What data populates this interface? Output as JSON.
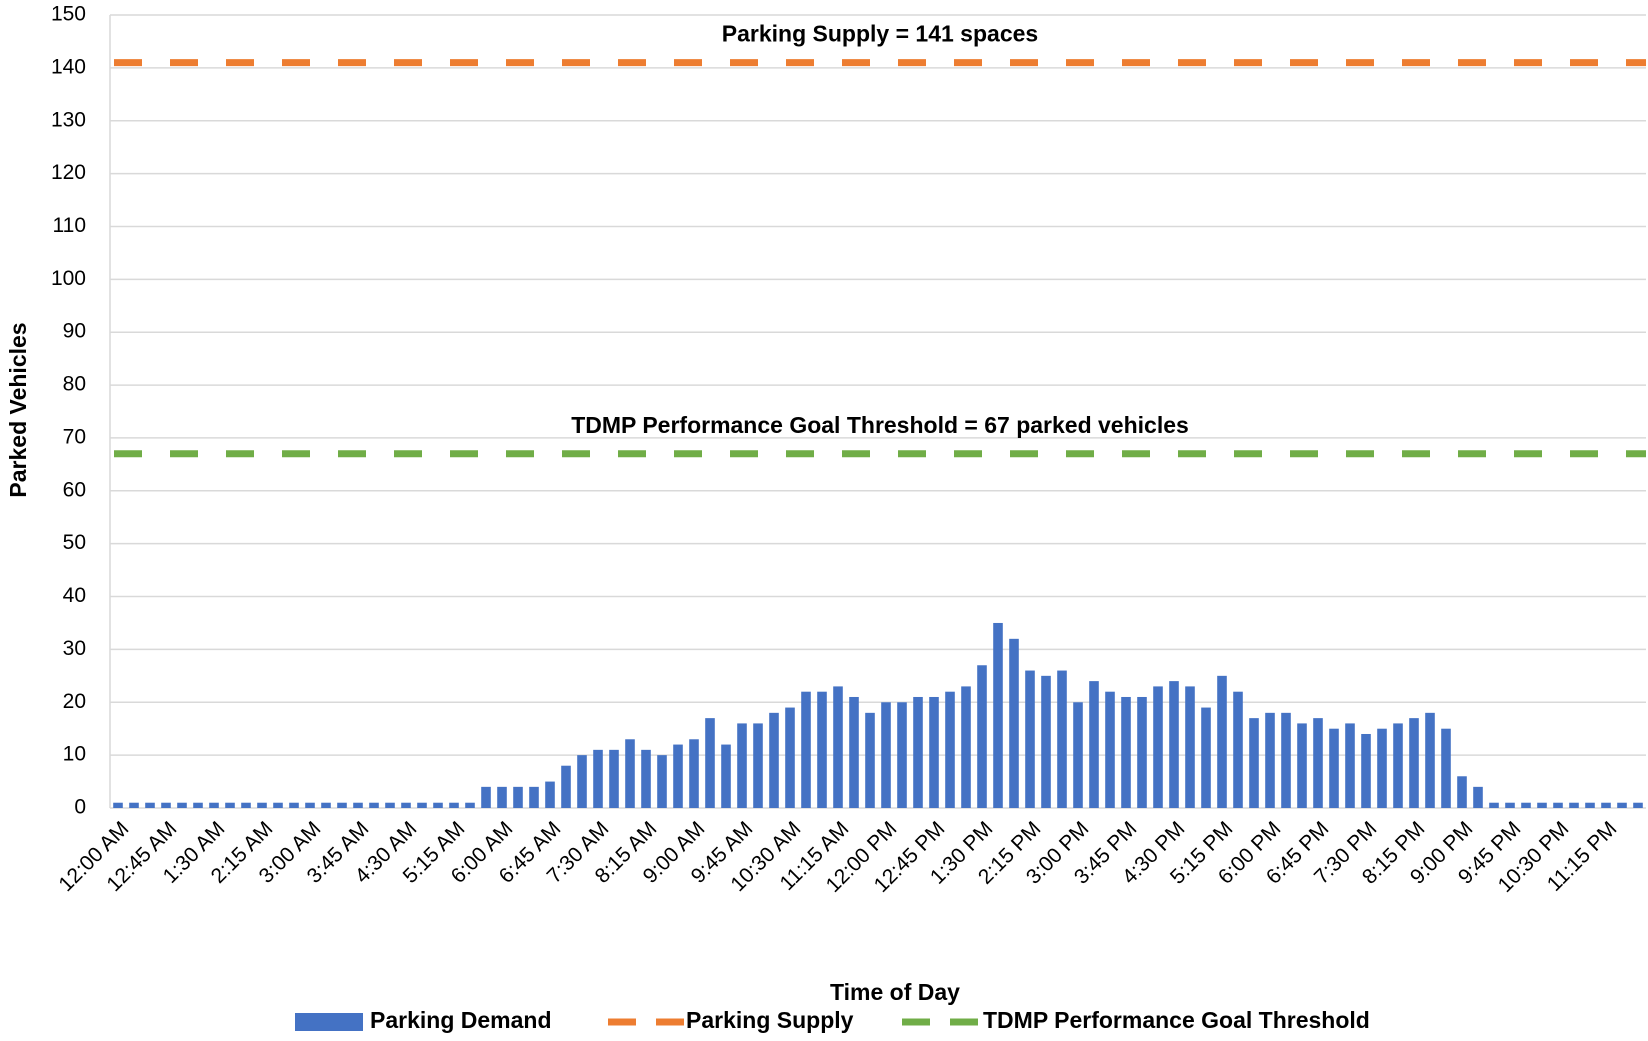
{
  "chart_data": {
    "type": "bar",
    "xlabel": "Time of Day",
    "ylabel": "Parked Vehicles",
    "categories": [
      "12:00 AM",
      null,
      null,
      "12:45 AM",
      null,
      null,
      "1:30 AM",
      null,
      null,
      "2:15 AM",
      null,
      null,
      "3:00 AM",
      null,
      null,
      "3:45 AM",
      null,
      null,
      "4:30 AM",
      null,
      null,
      "5:15 AM",
      null,
      null,
      "6:00 AM",
      null,
      null,
      "6:45 AM",
      null,
      null,
      "7:30 AM",
      null,
      null,
      "8:15 AM",
      null,
      null,
      "9:00 AM",
      null,
      null,
      "9:45 AM",
      null,
      null,
      "10:30 AM",
      null,
      null,
      "11:15 AM",
      null,
      null,
      "12:00 PM",
      null,
      null,
      "12:45 PM",
      null,
      null,
      "1:30 PM",
      null,
      null,
      "2:15 PM",
      null,
      null,
      "3:00 PM",
      null,
      null,
      "3:45 PM",
      null,
      null,
      "4:30 PM",
      null,
      null,
      "5:15 PM",
      null,
      null,
      "6:00 PM",
      null,
      null,
      "6:45 PM",
      null,
      null,
      "7:30 PM",
      null,
      null,
      "8:15 PM",
      null,
      null,
      "9:00 PM",
      null,
      null,
      "9:45 PM",
      null,
      null,
      "10:30 PM",
      null,
      null,
      "11:15 PM",
      null,
      null
    ],
    "series": [
      {
        "name": "Parking Demand",
        "color": "#4472c4",
        "values": [
          1,
          1,
          1,
          1,
          1,
          1,
          1,
          1,
          1,
          1,
          1,
          1,
          1,
          1,
          1,
          1,
          1,
          1,
          1,
          1,
          1,
          1,
          1,
          4,
          4,
          4,
          4,
          5,
          8,
          10,
          11,
          11,
          13,
          11,
          10,
          12,
          13,
          17,
          12,
          16,
          16,
          18,
          19,
          22,
          22,
          23,
          21,
          18,
          20,
          20,
          21,
          21,
          22,
          23,
          27,
          35,
          32,
          26,
          25,
          26,
          20,
          24,
          22,
          21,
          21,
          23,
          24,
          23,
          19,
          25,
          22,
          17,
          18,
          18,
          16,
          17,
          15,
          16,
          14,
          15,
          16,
          17,
          18,
          15,
          6,
          4,
          1,
          1,
          1,
          1,
          1,
          1,
          1,
          1,
          1,
          1
        ]
      }
    ],
    "lines": [
      {
        "name": "Parking Supply",
        "value": 141,
        "color": "#ed7d31",
        "label": "Parking Supply = 141 spaces"
      },
      {
        "name": "TDMP Performance Goal Threshold",
        "value": 67,
        "color": "#70ad47",
        "label": "TDMP Performance Goal Threshold = 67 parked vehicles"
      }
    ],
    "ylim": [
      0,
      150
    ],
    "yticks": [
      0,
      10,
      20,
      30,
      40,
      50,
      60,
      70,
      80,
      90,
      100,
      110,
      120,
      130,
      140,
      150
    ],
    "grid": true,
    "legend": "bottom"
  }
}
